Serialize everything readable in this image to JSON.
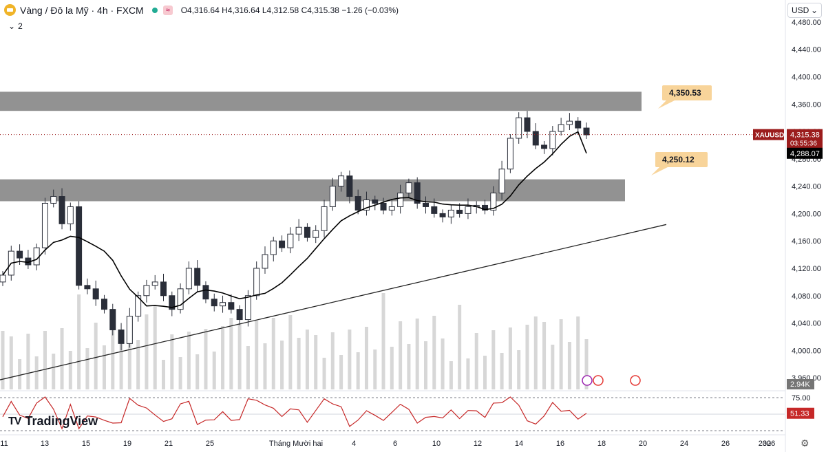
{
  "header": {
    "symbol": "Vàng / Đô la Mỹ · 4h · FXCM",
    "wave_icon": "≈",
    "open": "O4,316.64",
    "high": "H4,316.64",
    "low": "L4,312.58",
    "close": "C4,315.38",
    "change": "−1.26 (−0.03%)",
    "indicators_count": "2"
  },
  "currency": {
    "label": "USD",
    "icon": "chevron-down-icon"
  },
  "brand": {
    "name": "TradingView",
    "mark": "TV"
  },
  "colors": {
    "up": "#ffffff",
    "down": "#2a2e39",
    "zone": "#7f7f7f",
    "ma": "#000000",
    "rsi": "#c62828",
    "price_tag": "#9b1c1c",
    "annotation": "#f8d49a"
  },
  "chart_data": {
    "type": "candlestick",
    "instrument": "XAUUSD",
    "timeframe": "4h",
    "y_axis": {
      "range": [
        3940,
        4500
      ],
      "ticks": [
        3960,
        4000,
        4040,
        4080,
        4120,
        4160,
        4200,
        4240,
        4280,
        4320,
        4360,
        4400,
        4440,
        4480
      ],
      "tick_labels": [
        "3,960.00",
        "4,000.00",
        "4,040.00",
        "4,080.00",
        "4,120.00",
        "4,160.00",
        "4,200.00",
        "4,240.00",
        "4,280.00",
        "4,320.00",
        "4,360.00",
        "4,400.00",
        "4,440.00",
        "4,480.00"
      ]
    },
    "x_axis": {
      "tick_labels": [
        "11",
        "13",
        "15",
        "19",
        "21",
        "25",
        "Tháng Mười hai",
        "4",
        "6",
        "10",
        "12",
        "14",
        "16",
        "18",
        "20",
        "24",
        "26",
        "30",
        "2026"
      ]
    },
    "current_price": {
      "symbol": "XAUUSD",
      "price": "4,315.38",
      "countdown": "03:55:36",
      "value": 4315.38
    },
    "ma": {
      "label": "4,288.07",
      "value": 4288.07
    },
    "annotations": [
      {
        "text": "4,350.53",
        "value": 4350.53
      },
      {
        "text": "4,250.12",
        "value": 4250.12
      }
    ],
    "zones": [
      {
        "from": 4350,
        "to": 4378
      },
      {
        "from": 4218,
        "to": 4250
      }
    ],
    "trendline": {
      "from": 3957,
      "to": 4184
    },
    "closes": [
      4110,
      4145,
      4135,
      4125,
      4150,
      4215,
      4225,
      4185,
      4210,
      4095,
      4090,
      4075,
      4060,
      4030,
      4010,
      4050,
      4080,
      4095,
      4100,
      4080,
      4060,
      4090,
      4120,
      4095,
      4075,
      4065,
      4070,
      4060,
      4045,
      4080,
      4120,
      4140,
      4160,
      4150,
      4170,
      4180,
      4165,
      4175,
      4210,
      4240,
      4255,
      4225,
      4205,
      4220,
      4215,
      4205,
      4210,
      4230,
      4245,
      4215,
      4210,
      4200,
      4195,
      4205,
      4200,
      4210,
      4212,
      4205,
      4230,
      4265,
      4310,
      4340,
      4320,
      4300,
      4295,
      4320,
      4330,
      4335,
      4325,
      4315
    ],
    "volume": {
      "label": "2.94K",
      "max_k": 4.2
    },
    "rsi": {
      "label": "51.33",
      "value": 51.33,
      "level_label": "75.00",
      "upper": 75,
      "lower": 25
    }
  }
}
